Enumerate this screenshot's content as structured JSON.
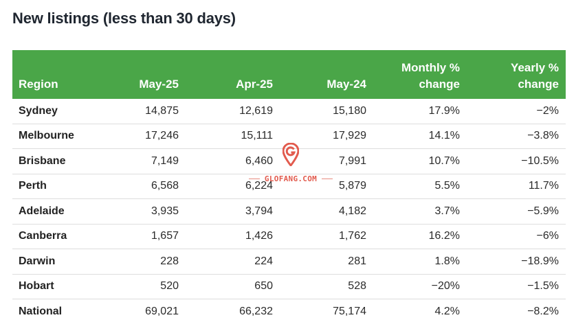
{
  "title": "New listings (less than 30 days)",
  "table": {
    "headers": {
      "region": "Region",
      "may25": "May-25",
      "apr25": "Apr-25",
      "may24": "May-24",
      "monthly_line1": "Monthly %",
      "monthly_line2": "change",
      "yearly_line1": "Yearly %",
      "yearly_line2": "change"
    },
    "rows": [
      {
        "region": "Sydney",
        "may25": "14,875",
        "apr25": "12,619",
        "may24": "15,180",
        "monthly": "17.9%",
        "yearly": "−2%"
      },
      {
        "region": "Melbourne",
        "may25": "17,246",
        "apr25": "15,111",
        "may24": "17,929",
        "monthly": "14.1%",
        "yearly": "−3.8%"
      },
      {
        "region": "Brisbane",
        "may25": "7,149",
        "apr25": "6,460",
        "may24": "7,991",
        "monthly": "10.7%",
        "yearly": "−10.5%"
      },
      {
        "region": "Perth",
        "may25": "6,568",
        "apr25": "6,224",
        "may24": "5,879",
        "monthly": "5.5%",
        "yearly": "11.7%"
      },
      {
        "region": "Adelaide",
        "may25": "3,935",
        "apr25": "3,794",
        "may24": "4,182",
        "monthly": "3.7%",
        "yearly": "−5.9%"
      },
      {
        "region": "Canberra",
        "may25": "1,657",
        "apr25": "1,426",
        "may24": "1,762",
        "monthly": "16.2%",
        "yearly": "−6%"
      },
      {
        "region": "Darwin",
        "may25": "228",
        "apr25": "224",
        "may24": "281",
        "monthly": "1.8%",
        "yearly": "−18.9%"
      },
      {
        "region": "Hobart",
        "may25": "520",
        "apr25": "650",
        "may24": "528",
        "monthly": "−20%",
        "yearly": "−1.5%"
      },
      {
        "region": "National",
        "may25": "69,021",
        "apr25": "66,232",
        "may24": "75,174",
        "monthly": "4.2%",
        "yearly": "−8.2%"
      }
    ]
  },
  "watermark": {
    "text": "GLOFANG.COM",
    "icon": "map-pin-g-logo-icon",
    "color": "#e25b4e"
  },
  "colors": {
    "header_bg": "#4aa648",
    "header_text": "#ffffff",
    "row_divider": "#dddddd"
  }
}
